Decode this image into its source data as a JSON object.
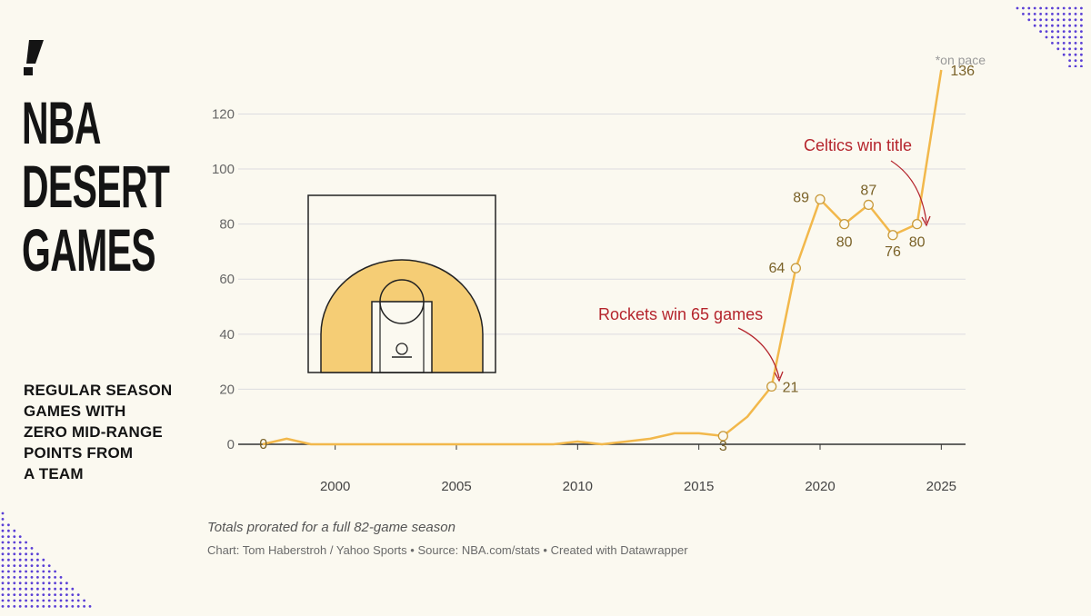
{
  "header": {
    "title_lines": [
      "NBA",
      "DESERT",
      "GAMES"
    ],
    "subtitle_lines": [
      "REGULAR SEASON",
      "GAMES WITH",
      "ZERO MID-RANGE",
      "POINTS FROM",
      "A TEAM"
    ]
  },
  "footer": {
    "note": "Totals prorated for a full 82-game season",
    "credit": "Chart: Tom Haberstroh / Yahoo Sports • Source: NBA.com/stats • Created with Datawrapper"
  },
  "colors": {
    "line": "#f2b84b",
    "annotation": "#b5252d",
    "label": "#7a6228",
    "grid": "#dcdce0",
    "court_fill": "#f5cd75",
    "dots": "#5a3fd6"
  },
  "chart_data": {
    "type": "line",
    "title": "NBA Desert Games",
    "subtitle": "Regular season games with zero mid-range points from a team",
    "xlabel": "",
    "ylabel": "",
    "xlim": [
      1996,
      2026
    ],
    "ylim": [
      0,
      136
    ],
    "x_ticks": [
      2000,
      2005,
      2010,
      2015,
      2020,
      2025
    ],
    "y_ticks": [
      0,
      20,
      40,
      60,
      80,
      100,
      120
    ],
    "series": [
      {
        "name": "Games with zero mid-range points",
        "x": [
          1997,
          1998,
          1999,
          2000,
          2001,
          2002,
          2003,
          2004,
          2005,
          2006,
          2007,
          2008,
          2009,
          2010,
          2011,
          2012,
          2013,
          2014,
          2015,
          2016,
          2017,
          2018,
          2019,
          2020,
          2021,
          2022,
          2023,
          2024,
          2025
        ],
        "y": [
          0,
          2,
          0,
          0,
          0,
          0,
          0,
          0,
          0,
          0,
          0,
          0,
          0,
          1,
          0,
          1,
          2,
          4,
          4,
          3,
          10,
          21,
          64,
          89,
          80,
          87,
          76,
          80,
          136
        ]
      }
    ],
    "point_labels": [
      {
        "year": 1997,
        "value": 0,
        "text": "0"
      },
      {
        "year": 2016,
        "value": 3,
        "text": "3"
      },
      {
        "year": 2018,
        "value": 21,
        "text": "21"
      },
      {
        "year": 2019,
        "value": 64,
        "text": "64"
      },
      {
        "year": 2020,
        "value": 89,
        "text": "89"
      },
      {
        "year": 2021,
        "value": 80,
        "text": "80"
      },
      {
        "year": 2022,
        "value": 87,
        "text": "87"
      },
      {
        "year": 2023,
        "value": 76,
        "text": "76"
      },
      {
        "year": 2024,
        "value": 80,
        "text": "80"
      },
      {
        "year": 2025,
        "value": 136,
        "text": "136"
      }
    ],
    "circled_years": [
      2016,
      2018,
      2019,
      2020,
      2021,
      2022,
      2023,
      2024
    ],
    "annotations": [
      {
        "text": "Rockets win 65 games",
        "year": 2018,
        "value": 21
      },
      {
        "text": "Celtics win title",
        "year": 2024,
        "value": 80
      },
      {
        "text": "*on pace",
        "year": 2025,
        "value": 136
      }
    ]
  }
}
